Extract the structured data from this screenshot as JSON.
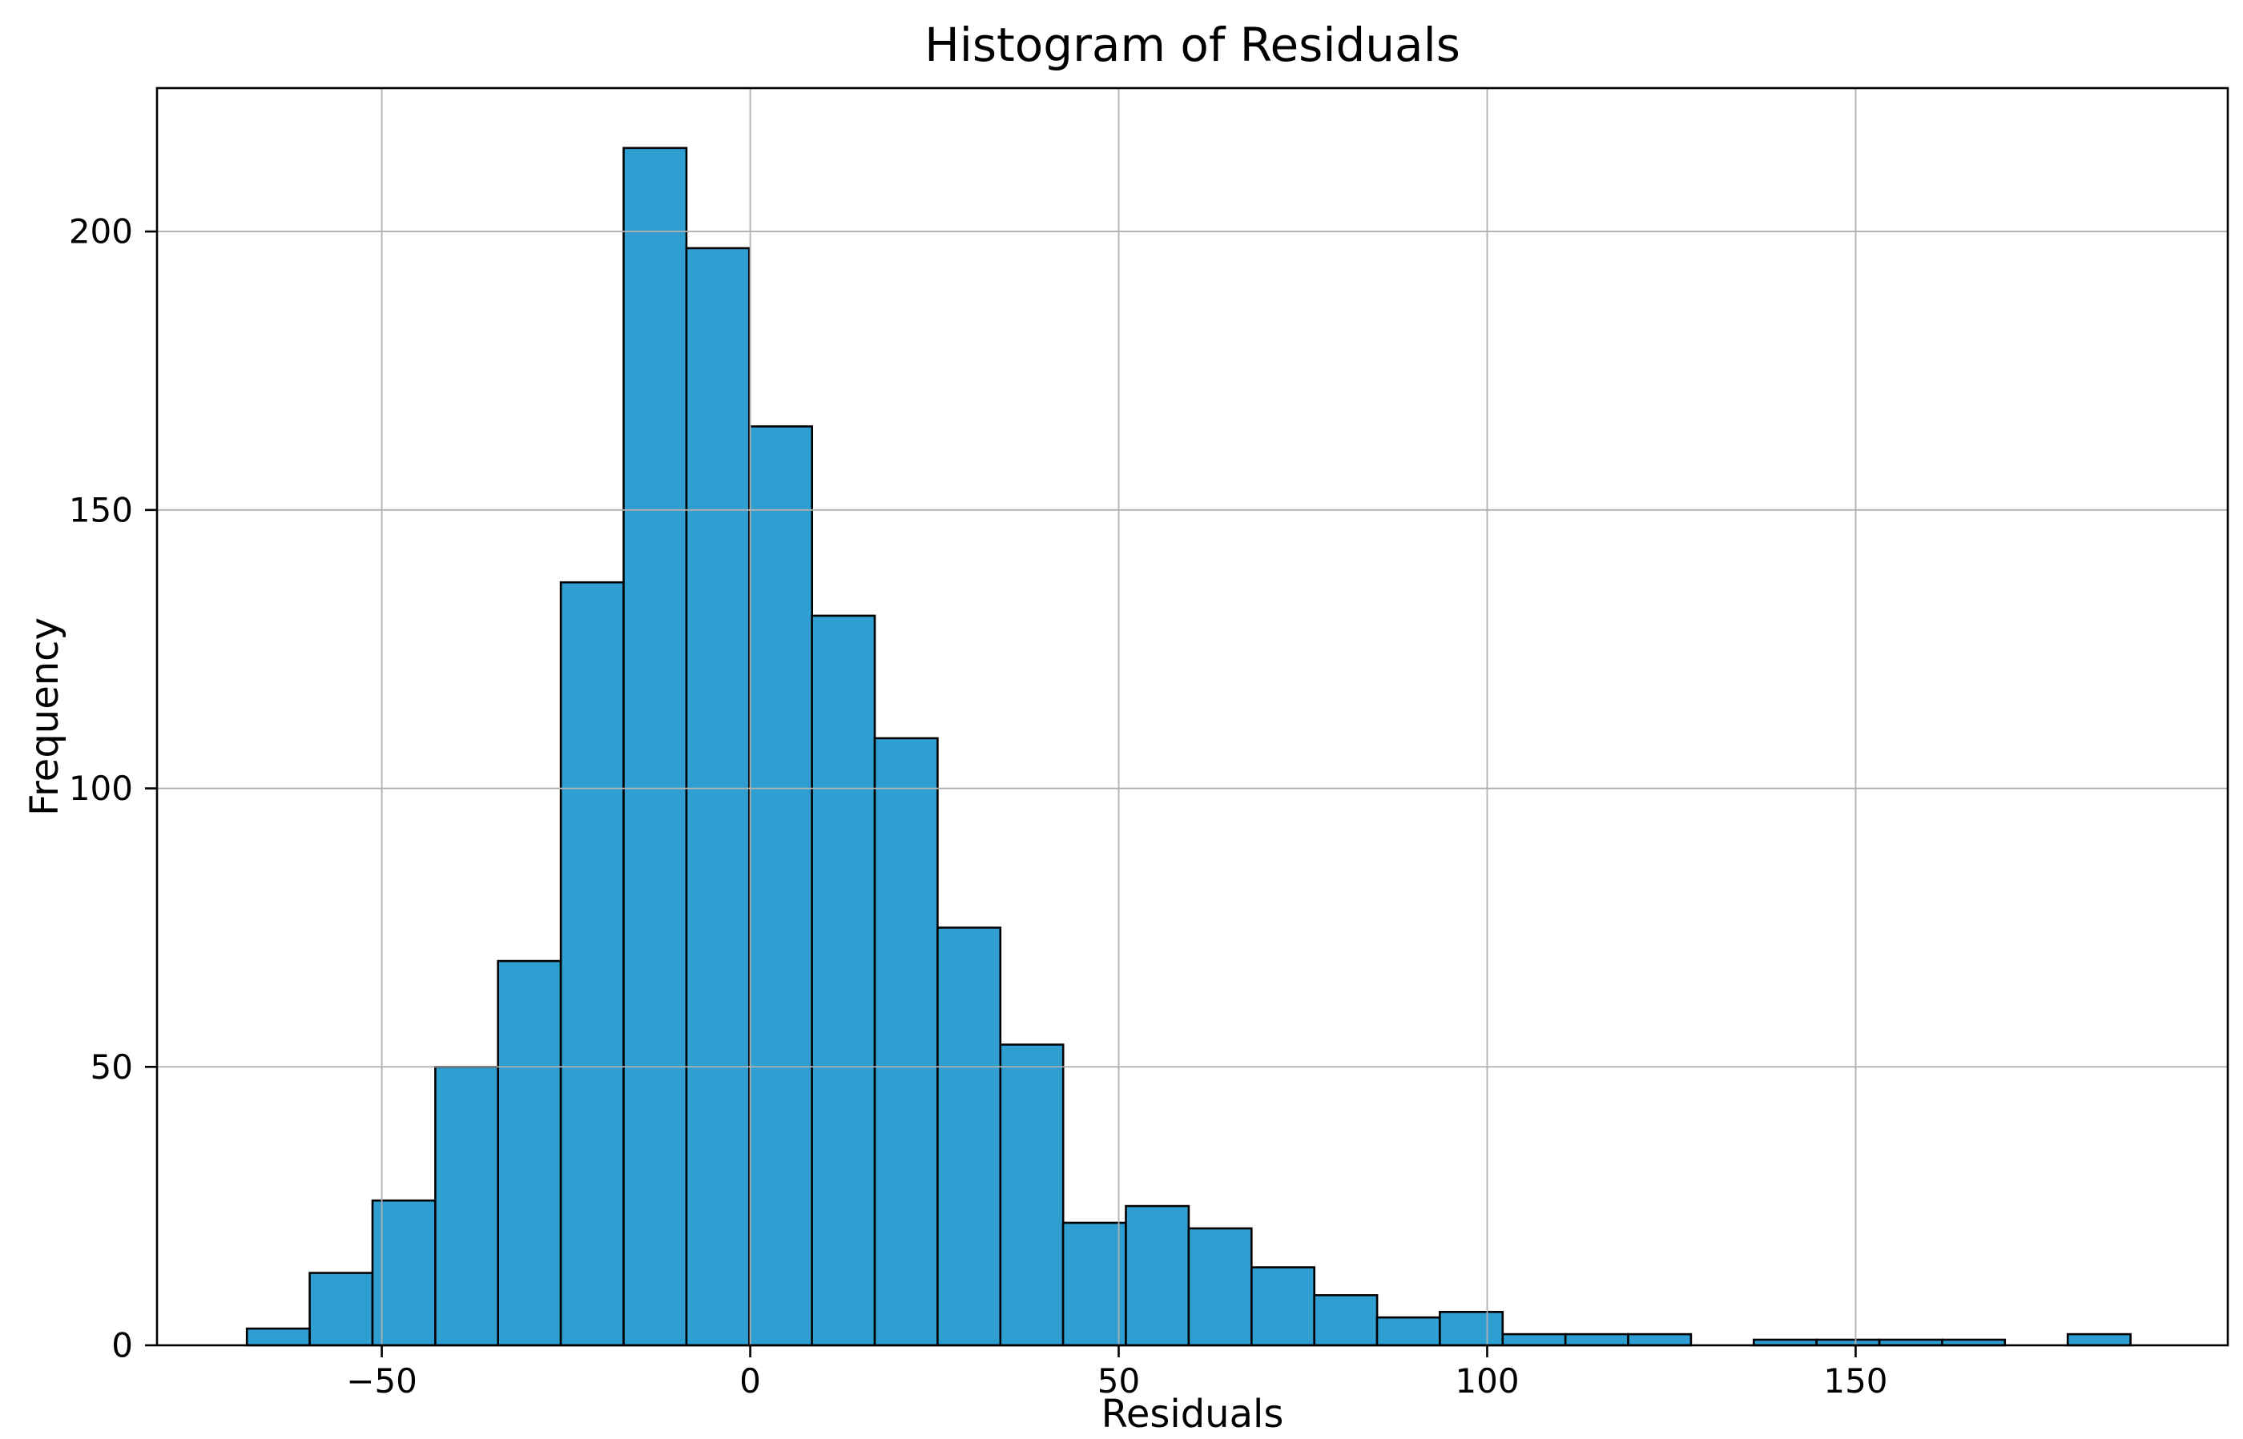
{
  "figure": {
    "title": "Histogram of Residuals",
    "xlabel": "Residuals",
    "ylabel": "Frequency"
  },
  "chart_data": {
    "type": "bar",
    "subtype": "histogram",
    "title": "Histogram of Residuals",
    "xlabel": "Residuals",
    "ylabel": "Frequency",
    "bin_start": -68.3,
    "bin_width": 8.52,
    "counts": [
      3,
      13,
      26,
      50,
      69,
      137,
      215,
      197,
      165,
      131,
      109,
      75,
      54,
      22,
      25,
      21,
      14,
      9,
      5,
      6,
      2,
      2,
      2,
      0,
      1,
      1,
      1,
      1,
      0,
      2
    ],
    "xlim": [
      -80.5,
      200.5
    ],
    "ylim": [
      0,
      225.75
    ],
    "xticks": [
      {
        "value": -50,
        "label": "−50"
      },
      {
        "value": 0,
        "label": "0"
      },
      {
        "value": 50,
        "label": "50"
      },
      {
        "value": 100,
        "label": "100"
      },
      {
        "value": 150,
        "label": "150"
      }
    ],
    "yticks": [
      {
        "value": 0,
        "label": "0"
      },
      {
        "value": 50,
        "label": "50"
      },
      {
        "value": 100,
        "label": "100"
      },
      {
        "value": 150,
        "label": "150"
      },
      {
        "value": 200,
        "label": "200"
      }
    ],
    "grid": true,
    "grid_on_top": true,
    "legend": false,
    "colors": {
      "bar_fill": "#2F9ED1",
      "bar_edge": "#000000",
      "grid": "#b0b0b0",
      "spine": "#000000",
      "text": "#000000",
      "background": "#ffffff"
    }
  }
}
